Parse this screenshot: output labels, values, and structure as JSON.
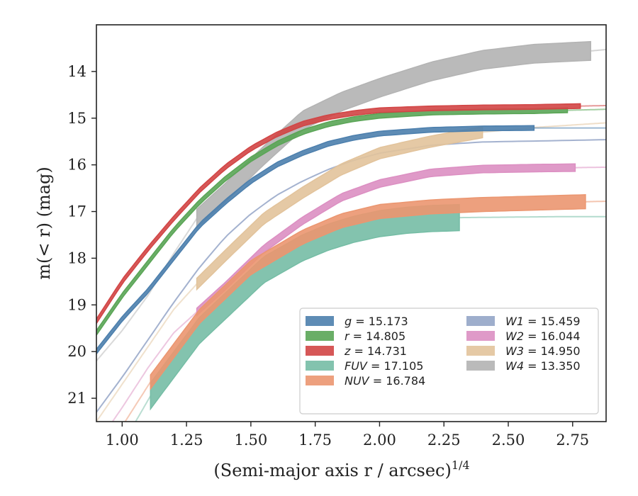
{
  "chart_data": {
    "type": "line",
    "xlabel": "(Semi-major axis r / arcsec)",
    "xlabel_sup": "1/4",
    "ylabel": "m(< r) (mag)",
    "xlim": [
      0.9,
      2.88
    ],
    "ylim": [
      21.5,
      13.0
    ],
    "y_inverted": true,
    "xticks": [
      1.0,
      1.25,
      1.5,
      1.75,
      2.0,
      2.25,
      2.5,
      2.75
    ],
    "xtick_labels": [
      "1.00",
      "1.25",
      "1.50",
      "1.75",
      "2.00",
      "2.25",
      "2.50",
      "2.75"
    ],
    "yticks": [
      14,
      15,
      16,
      17,
      18,
      19,
      20,
      21
    ],
    "ytick_labels": [
      "14",
      "15",
      "16",
      "17",
      "18",
      "19",
      "20",
      "21"
    ],
    "legend_placement": "lower-right",
    "series": [
      {
        "name": "g",
        "legend": "g = 15.173",
        "color": "#4c7fad",
        "x": [
          0.9,
          1.0,
          1.1,
          1.2,
          1.3,
          1.4,
          1.5,
          1.6,
          1.7,
          1.8,
          1.9,
          2.0,
          2.2,
          2.4,
          2.6,
          2.88
        ],
        "y": [
          20.0,
          19.3,
          18.7,
          18.0,
          17.3,
          16.8,
          16.35,
          16.0,
          15.75,
          15.55,
          15.42,
          15.33,
          15.25,
          15.22,
          15.21,
          15.21
        ],
        "band": 0.05,
        "faint_from": 2.6
      },
      {
        "name": "r",
        "legend": "r = 14.805",
        "color": "#5aa556",
        "x": [
          0.9,
          1.0,
          1.1,
          1.2,
          1.3,
          1.4,
          1.5,
          1.6,
          1.7,
          1.8,
          1.9,
          2.0,
          2.2,
          2.4,
          2.6,
          2.88
        ],
        "y": [
          19.6,
          18.8,
          18.1,
          17.4,
          16.8,
          16.3,
          15.88,
          15.55,
          15.3,
          15.13,
          15.02,
          14.95,
          14.88,
          14.86,
          14.85,
          14.81
        ],
        "band": 0.05,
        "faint_from": 2.73
      },
      {
        "name": "z",
        "legend": "z = 14.731",
        "color": "#d24545",
        "x": [
          0.9,
          1.0,
          1.1,
          1.2,
          1.3,
          1.4,
          1.5,
          1.6,
          1.7,
          1.8,
          1.9,
          2.0,
          2.2,
          2.4,
          2.6,
          2.88
        ],
        "y": [
          19.35,
          18.5,
          17.8,
          17.15,
          16.55,
          16.05,
          15.65,
          15.35,
          15.12,
          14.98,
          14.89,
          14.83,
          14.79,
          14.77,
          14.76,
          14.73
        ],
        "band": 0.05,
        "faint_from": 2.78
      },
      {
        "name": "FUV",
        "legend": "FUV = 17.105",
        "color": "#75bda5",
        "x": [
          0.9,
          1.0,
          1.11,
          1.3,
          1.55,
          1.7,
          1.8,
          1.9,
          2.0,
          2.1,
          2.2,
          2.31,
          2.5,
          2.7,
          2.88
        ],
        "y": [
          23.2,
          22.0,
          20.95,
          19.55,
          18.25,
          17.78,
          17.55,
          17.38,
          17.26,
          17.19,
          17.15,
          17.13,
          17.12,
          17.11,
          17.11
        ],
        "band": 0.28,
        "solid_from": 1.11,
        "faint_from": 2.31
      },
      {
        "name": "NUV",
        "legend": "NUV = 16.784",
        "color": "#eb9670",
        "x": [
          0.9,
          1.0,
          1.11,
          1.3,
          1.5,
          1.7,
          1.85,
          2.0,
          2.2,
          2.4,
          2.6,
          2.8,
          2.88
        ],
        "y": [
          22.5,
          21.6,
          20.65,
          19.25,
          18.2,
          17.55,
          17.2,
          17.0,
          16.9,
          16.85,
          16.82,
          16.79,
          16.78
        ],
        "band": 0.15,
        "solid_from": 1.11,
        "faint_from": 2.8
      },
      {
        "name": "W1",
        "legend": "W1 = 15.459",
        "color": "#94a5c7",
        "x": [
          0.9,
          1.0,
          1.1,
          1.2,
          1.3,
          1.4,
          1.5,
          1.6,
          1.7,
          1.8,
          1.9,
          2.0,
          2.2,
          2.4,
          2.6,
          2.88
        ],
        "y": [
          21.3,
          20.55,
          19.75,
          18.95,
          18.2,
          17.55,
          17.05,
          16.65,
          16.35,
          16.1,
          15.9,
          15.75,
          15.58,
          15.51,
          15.49,
          15.46
        ],
        "band": 0.04,
        "faint": true
      },
      {
        "name": "W2",
        "legend": "W2 = 16.044",
        "color": "#dc8fc2",
        "x": [
          0.9,
          1.0,
          1.1,
          1.2,
          1.29,
          1.4,
          1.55,
          1.7,
          1.85,
          2.0,
          2.2,
          2.4,
          2.6,
          2.76,
          2.88
        ],
        "y": [
          22.0,
          21.2,
          20.35,
          19.6,
          19.15,
          18.6,
          17.8,
          17.2,
          16.7,
          16.4,
          16.17,
          16.09,
          16.07,
          16.06,
          16.05
        ],
        "band": 0.08,
        "solid_from": 1.29,
        "faint_from": 2.76
      },
      {
        "name": "W3",
        "legend": "W3 = 14.950",
        "color": "#e2c39b",
        "x": [
          0.9,
          1.0,
          1.1,
          1.2,
          1.29,
          1.4,
          1.55,
          1.7,
          1.85,
          2.0,
          2.2,
          2.4,
          2.6,
          2.88
        ],
        "y": [
          21.5,
          20.7,
          19.9,
          19.1,
          18.55,
          17.95,
          17.15,
          16.6,
          16.1,
          15.75,
          15.5,
          15.3,
          15.2,
          15.1
        ],
        "band": 0.12,
        "solid_from": 1.29,
        "faint_from": 2.4
      },
      {
        "name": "W4",
        "legend": "W4 = 13.350",
        "color": "#b3b3b3",
        "x": [
          0.9,
          1.0,
          1.1,
          1.2,
          1.29,
          1.4,
          1.55,
          1.7,
          1.85,
          2.0,
          2.2,
          2.4,
          2.6,
          2.82,
          2.88
        ],
        "y": [
          20.2,
          19.55,
          18.8,
          17.9,
          17.15,
          16.6,
          15.8,
          15.05,
          14.65,
          14.35,
          14.0,
          13.75,
          13.62,
          13.56,
          13.53
        ],
        "band": 0.2,
        "solid_from": 1.29,
        "faint_from": 2.82
      }
    ]
  }
}
